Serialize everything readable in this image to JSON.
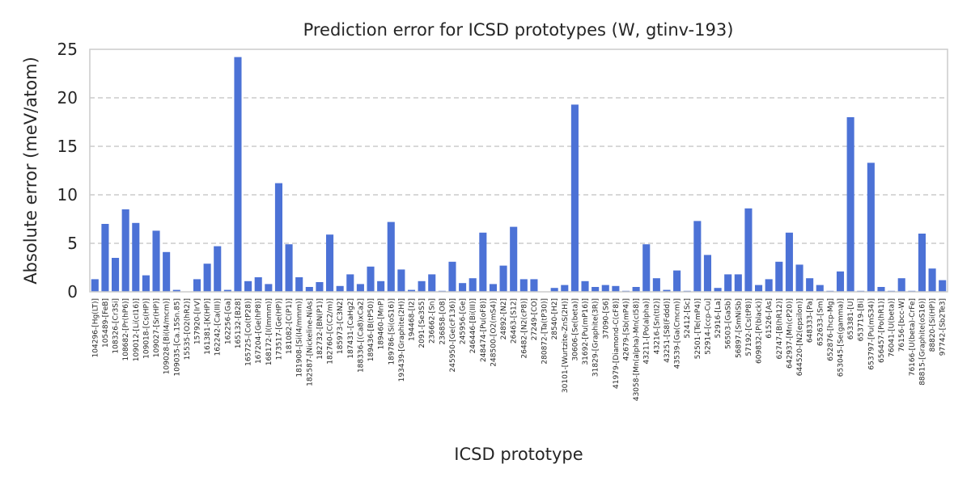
{
  "chart_data": {
    "type": "bar",
    "title": "Prediction error for ICSD prototypes (W, gtinv-193)",
    "xlabel": "ICSD prototype",
    "ylabel": "Absolute error (meV/atom)",
    "ylim": [
      0,
      25
    ],
    "yticks": [
      0,
      5,
      10,
      15,
      20,
      25
    ],
    "grid": "horizontal-dashed",
    "bar_color": "#4c72d6",
    "categories": [
      "104296-[Hg(LT)]",
      "105489-[FeB]",
      "108326-[Cr3Si]",
      "108682-[Pr(hP6)]",
      "109012-[Li(cI16)]",
      "109018-[Cs(HP)]",
      "109027-[Sr(HP)]",
      "109028-[Bi(I4/mcm)]",
      "109035-[Ca.15Sn.85]",
      "15535-[O2(hR2)]",
      "157920-[IrV]",
      "161381-[K(HP)]",
      "162242-[Ca(III)]",
      "162256-[Ga]",
      "165132-[B28]",
      "165725-[Co(tP28)]",
      "167204-[Ge(hP8)]",
      "168172-[I(Immm)]",
      "173517-[Ge(HP)]",
      "181082-[C(P1)]",
      "181908-[Si(I4/mmm)]",
      "182587-[Nickeline-NiAs]",
      "182732-[BN(P1)]",
      "182760-[C(C2/m)]",
      "185973-[C3N2]",
      "187431-[CaHg2]",
      "188336-[(Ca8)xCa2]",
      "189436-[B(tP50)]",
      "189460-[MnP]",
      "189786-[Si(oS16)]",
      "193439-[Graphite(2H)]",
      "194468-[I2]",
      "2091-[Se3S5]",
      "236662-[Sn]",
      "236858-[O8]",
      "245950-[Ge(cF136)]",
      "245956-[Ge]",
      "246446-[Bi(III)]",
      "248474-[Pu(oF8)]",
      "248500-[O2(mS4)]",
      "24892-[N2]",
      "26463-[S12]",
      "26482-[N2(cP8)]",
      "27249-[CO]",
      "280872-[Ta(tP30)]",
      "28540-[H2]",
      "30101-[Wurtzite-ZnS(2H)]",
      "30606-[Se(beta)]",
      "31692-[Pu(mP16)]",
      "31829-[Graphite(3R)]",
      "37090-[S6]",
      "41979-[Diamond-C(cF8)]",
      "42679-[Sb(mP4)]",
      "43058-[Mn(alpha)-Mn(cI58)]",
      "43211-[Po(alpha)]",
      "43216-[Sn(tI2)]",
      "43251-[S8(Fddd)]",
      "43539-[Ga(Cmcm)]",
      "52412-[Sc]",
      "52501-[Te(mP4)]",
      "52914-[ccp-Cu]",
      "52916-[La]",
      "56503-[GaSb]",
      "56897-[SmNiSb]",
      "57192-[Cs(tP8)]",
      "609832-[P(black)]",
      "61526-[As]",
      "62747-[B(hR12)]",
      "642937-[Mn(cP20)]",
      "644520-[N2(epsilon)]",
      "648333-[Pa]",
      "652633-[Sm]",
      "652876-[hcp-Mg]",
      "653045-[Se(gamma)]",
      "653381-[U]",
      "653719-[Bi]",
      "653797-[Pu(mS34)]",
      "656457-[Po(hR1)]",
      "76041-[U(beta)]",
      "76156-[bcc-W]",
      "76166-[U(beta)-CrFe]",
      "88815-[Graphite(oS16)]",
      "88820-[Si(HP)]",
      "97742-[Sb2Te3]"
    ],
    "values": [
      1.3,
      7.0,
      3.5,
      8.5,
      7.1,
      1.7,
      6.3,
      4.1,
      0.2,
      0.0,
      1.3,
      2.9,
      4.7,
      0.2,
      24.2,
      1.1,
      1.5,
      0.8,
      11.2,
      4.9,
      1.5,
      0.5,
      1.0,
      5.9,
      0.6,
      1.8,
      0.8,
      2.6,
      1.1,
      7.2,
      2.3,
      0.2,
      1.1,
      1.8,
      0.1,
      3.1,
      0.9,
      1.4,
      6.1,
      0.8,
      2.7,
      6.7,
      1.3,
      1.3,
      0.0,
      0.4,
      0.7,
      19.3,
      1.1,
      0.5,
      0.7,
      0.6,
      0.1,
      0.5,
      4.9,
      1.4,
      0.2,
      2.2,
      0.1,
      7.3,
      3.8,
      0.4,
      1.8,
      1.8,
      8.6,
      0.7,
      1.3,
      3.1,
      6.1,
      2.8,
      1.4,
      0.7,
      0.1,
      2.1,
      18.0,
      0.1,
      13.3,
      0.5,
      0.1,
      1.4,
      0.1,
      6.0,
      2.4,
      1.2
    ]
  }
}
